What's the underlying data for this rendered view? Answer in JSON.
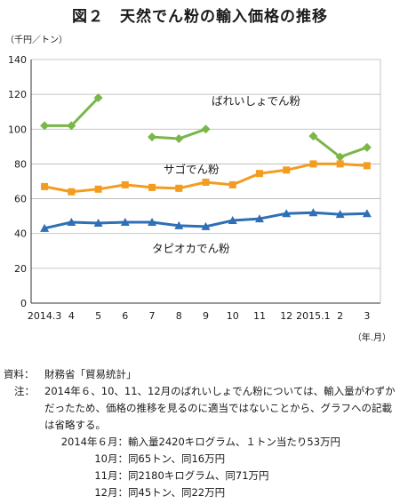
{
  "title": "図２　天然でん粉の輸入価格の推移",
  "chart_data": {
    "type": "line",
    "y_unit_label": "（千円／トン）",
    "x_unit_label": "（年.月）",
    "categories": [
      "2014.3",
      "4",
      "5",
      "6",
      "7",
      "8",
      "9",
      "10",
      "11",
      "12",
      "2015.1",
      "2",
      "3"
    ],
    "ylim": [
      0,
      140
    ],
    "yticks": [
      0,
      20,
      40,
      60,
      80,
      100,
      120,
      140
    ],
    "grid": true,
    "series": [
      {
        "name": "ばれいしょでん粉",
        "color": "#7ab648",
        "marker": "diamond",
        "values": [
          102,
          102,
          118,
          null,
          95.5,
          94.5,
          100,
          null,
          null,
          null,
          96,
          84,
          89.5
        ]
      },
      {
        "name": "サゴでん粉",
        "color": "#f39c1f",
        "marker": "square",
        "values": [
          67,
          64,
          65.5,
          68,
          66.5,
          66,
          69.5,
          68,
          74.5,
          76.5,
          80,
          80,
          79
        ]
      },
      {
        "name": "タピオカでん粉",
        "color": "#2e6fb5",
        "marker": "triangle",
        "values": [
          43,
          46.5,
          46,
          46.5,
          46.5,
          44.5,
          44,
          47.5,
          48.5,
          51.5,
          52,
          51,
          51.5
        ]
      }
    ]
  },
  "notes": {
    "source_label": "資料：",
    "source_text": "財務省「貿易統計」",
    "note_label": "注：",
    "note_text": "2014年６、10、11、12月のばれいしょでん粉については、輸入量がわずかだったため、価格の推移を見るのに適当ではないことから、グラフへの記載は省略する。",
    "details": [
      {
        "date": "2014年６月：",
        "text": "輸入量2420キログラム、１トン当たり53万円"
      },
      {
        "date": "10月：",
        "text": "同65トン、同16万円"
      },
      {
        "date": "11月：",
        "text": "同2180キログラム、同71万円"
      },
      {
        "date": "12月：",
        "text": "同45トン、同22万円"
      }
    ]
  }
}
